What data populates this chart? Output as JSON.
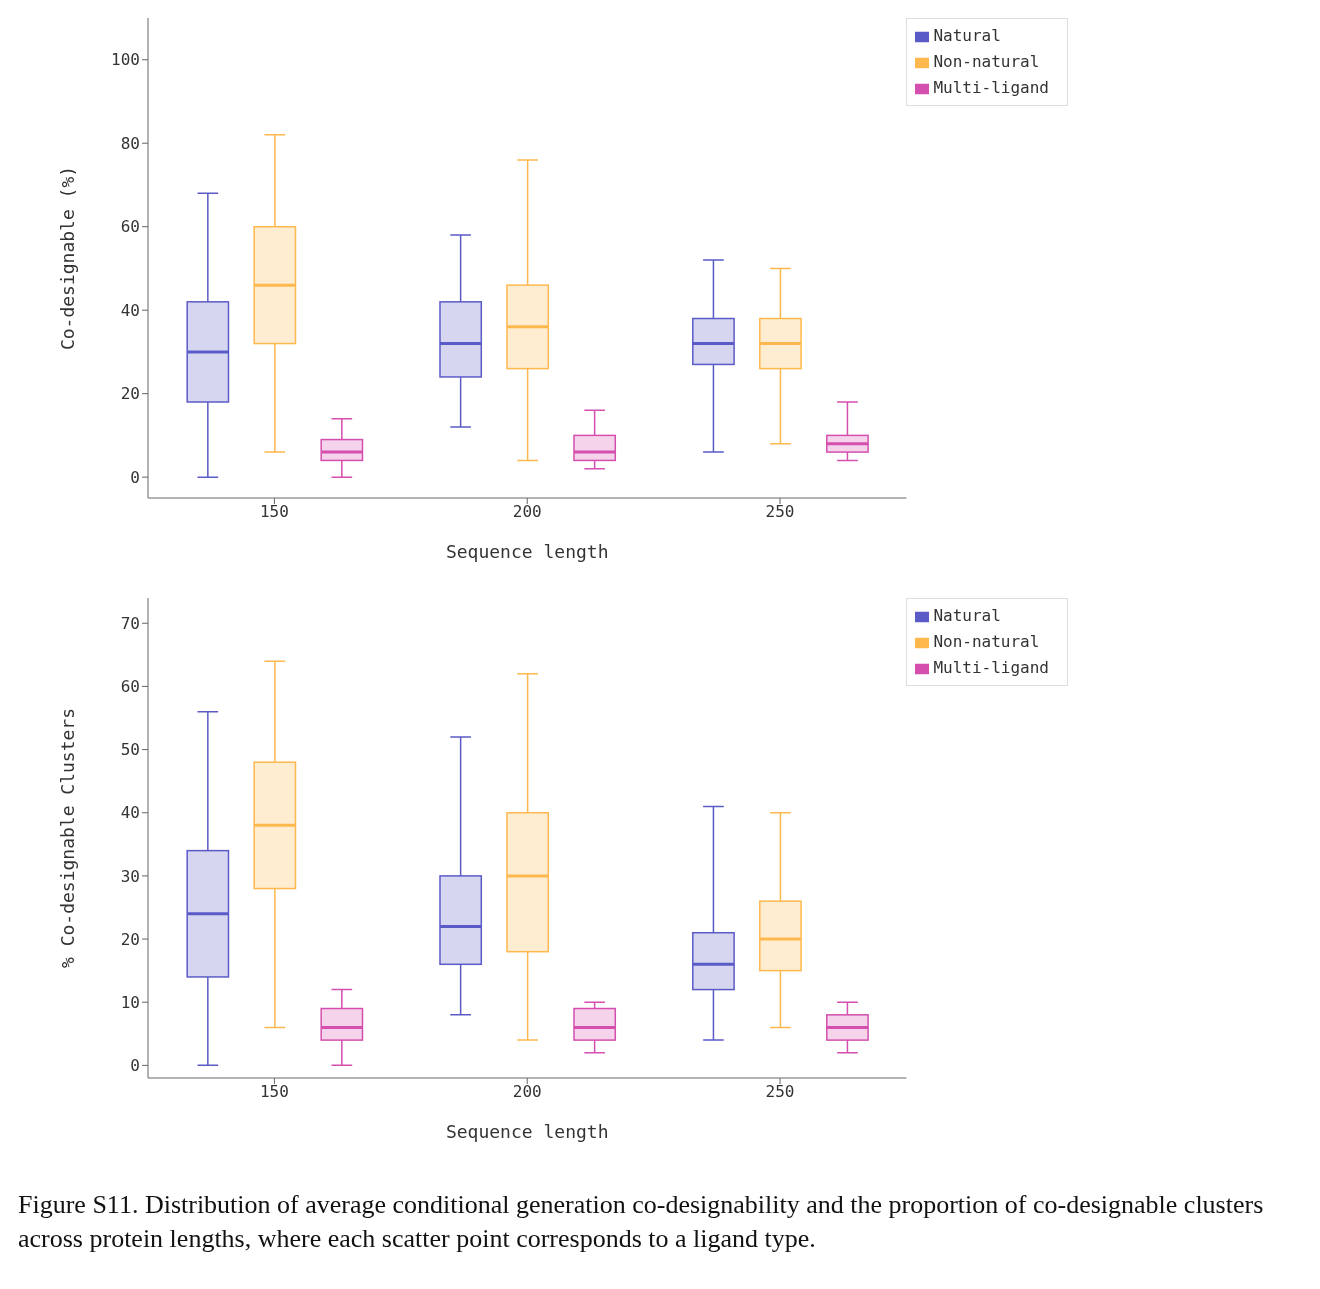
{
  "chart_data": [
    {
      "type": "box",
      "xlabel": "Sequence length",
      "ylabel": "Co-designable (%)",
      "categories": [
        "150",
        "200",
        "250"
      ],
      "ylim": [
        -5,
        110
      ],
      "yticks": [
        0,
        20,
        40,
        60,
        80,
        100
      ],
      "legend": "top right",
      "grid": false,
      "series": [
        {
          "name": "Natural",
          "color": "#5b5bc8",
          "boxes": [
            {
              "low": 0,
              "q1": 18,
              "median": 30,
              "q3": 42,
              "high": 68
            },
            {
              "low": 12,
              "q1": 24,
              "median": 32,
              "q3": 42,
              "high": 58
            },
            {
              "low": 6,
              "q1": 27,
              "median": 32,
              "q3": 38,
              "high": 52
            }
          ]
        },
        {
          "name": "Non-natural",
          "color": "#ffb84d",
          "boxes": [
            {
              "low": 6,
              "q1": 32,
              "median": 46,
              "q3": 60,
              "high": 82
            },
            {
              "low": 4,
              "q1": 26,
              "median": 36,
              "q3": 46,
              "high": 76
            },
            {
              "low": 8,
              "q1": 26,
              "median": 32,
              "q3": 38,
              "high": 50
            }
          ]
        },
        {
          "name": "Multi-ligand",
          "color": "#d44fae",
          "boxes": [
            {
              "low": 0,
              "q1": 4,
              "median": 6,
              "q3": 9,
              "high": 14
            },
            {
              "low": 2,
              "q1": 4,
              "median": 6,
              "q3": 10,
              "high": 16
            },
            {
              "low": 4,
              "q1": 6,
              "median": 8,
              "q3": 10,
              "high": 18
            }
          ]
        }
      ]
    },
    {
      "type": "box",
      "xlabel": "Sequence length",
      "ylabel": "% Co-designable Clusters",
      "categories": [
        "150",
        "200",
        "250"
      ],
      "ylim": [
        -2,
        74
      ],
      "yticks": [
        0,
        10,
        20,
        30,
        40,
        50,
        60,
        70
      ],
      "legend": "top right",
      "grid": false,
      "series": [
        {
          "name": "Natural",
          "color": "#5b5bc8",
          "boxes": [
            {
              "low": 0,
              "q1": 14,
              "median": 24,
              "q3": 34,
              "high": 56
            },
            {
              "low": 8,
              "q1": 16,
              "median": 22,
              "q3": 30,
              "high": 52
            },
            {
              "low": 4,
              "q1": 12,
              "median": 16,
              "q3": 21,
              "high": 41
            }
          ]
        },
        {
          "name": "Non-natural",
          "color": "#ffb84d",
          "boxes": [
            {
              "low": 6,
              "q1": 28,
              "median": 38,
              "q3": 48,
              "high": 64
            },
            {
              "low": 4,
              "q1": 18,
              "median": 30,
              "q3": 40,
              "high": 62
            },
            {
              "low": 6,
              "q1": 15,
              "median": 20,
              "q3": 26,
              "high": 40
            }
          ]
        },
        {
          "name": "Multi-ligand",
          "color": "#d44fae",
          "boxes": [
            {
              "low": 0,
              "q1": 4,
              "median": 6,
              "q3": 9,
              "high": 12
            },
            {
              "low": 2,
              "q1": 4,
              "median": 6,
              "q3": 9,
              "high": 10
            },
            {
              "low": 2,
              "q1": 4,
              "median": 6,
              "q3": 8,
              "high": 10
            }
          ]
        }
      ],
      "annotations": [
        "Figure S11. Distribution of average conditional generation co-designability and the proportion of co-designable clusters across protein lengths, where each scatter point corresponds to a ligand type."
      ]
    }
  ]
}
